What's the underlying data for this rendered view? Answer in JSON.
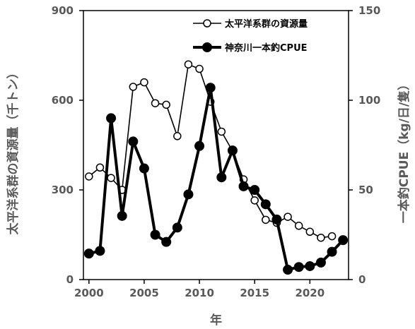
{
  "chart_data": {
    "type": "line",
    "xlabel": "年",
    "ylabel_left": "太平洋系群の資源量（千トン）",
    "ylabel_right": "一本釣CPUE（kg/日/隻）",
    "x_ticks": [
      2000,
      2005,
      2010,
      2015,
      2020
    ],
    "xlim": [
      1999.5,
      2023.5
    ],
    "y_left_ticks": [
      0,
      300,
      600,
      900
    ],
    "y_left_lim": [
      0,
      900
    ],
    "y_right_ticks": [
      0,
      50,
      100,
      150
    ],
    "y_right_lim": [
      0,
      150
    ],
    "legend_position": "top-right",
    "series": [
      {
        "name": "太平洋系群の資源量",
        "axis": "left",
        "style": "open-circle",
        "color": "#000000",
        "x": [
          2000,
          2001,
          2002,
          2003,
          2004,
          2005,
          2006,
          2007,
          2008,
          2009,
          2010,
          2011,
          2012,
          2013,
          2014,
          2015,
          2016,
          2017,
          2018,
          2019,
          2020,
          2021,
          2022
        ],
        "values": [
          345,
          375,
          340,
          300,
          645,
          660,
          590,
          585,
          480,
          720,
          705,
          595,
          495,
          430,
          335,
          265,
          200,
          190,
          210,
          180,
          160,
          140,
          145
        ]
      },
      {
        "name": "神奈川一本釣CPUE",
        "axis": "right",
        "style": "filled-circle-thick",
        "color": "#000000",
        "x": [
          2000,
          2001,
          2002,
          2003,
          2004,
          2005,
          2006,
          2007,
          2008,
          2009,
          2010,
          2011,
          2012,
          2013,
          2014,
          2015,
          2016,
          2017,
          2018,
          2019,
          2020,
          2021,
          2022,
          2023
        ],
        "values": [
          14.5,
          16,
          90,
          35.5,
          77,
          62,
          25,
          21,
          29,
          47.5,
          74.5,
          107,
          57,
          72,
          52,
          50,
          42,
          33.5,
          5.5,
          7,
          7.5,
          9.5,
          15.5,
          22
        ]
      }
    ]
  }
}
